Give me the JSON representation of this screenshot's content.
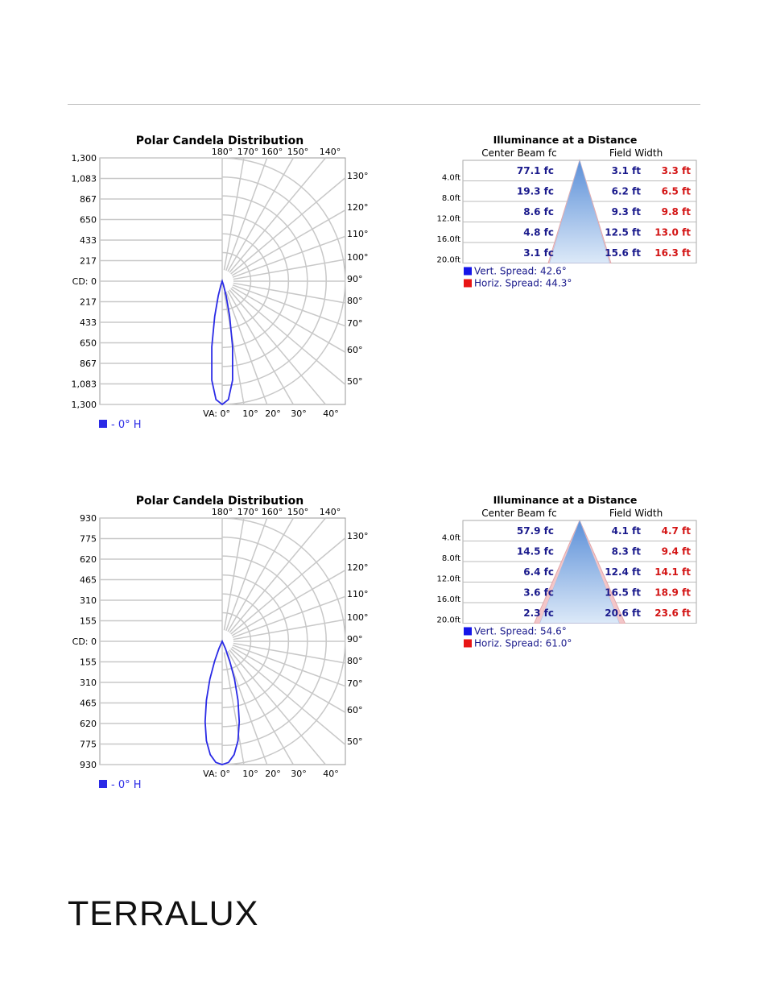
{
  "brand": "TERRALUX",
  "colors": {
    "series_blue": "#2a2ae6",
    "fc_text": "#1a1a8c",
    "width_horiz": "#d31414",
    "grid": "#c8c8c8",
    "cone_top": "#5b8fd8",
    "cone_bottom": "#dce9f8"
  },
  "chart_data": [
    {
      "type": "polar",
      "title": "Polar Candela Distribution",
      "cd_label": "CD: 0",
      "va_label": "VA: 0°",
      "top_angle_labels": [
        "180°",
        "170°",
        "160°",
        "150°",
        "140°"
      ],
      "right_angle_labels": [
        "130°",
        "120°",
        "110°",
        "100°",
        "90°",
        "80°",
        "70°",
        "60°",
        "50°"
      ],
      "bottom_angle_labels": [
        "10°",
        "20°",
        "30°",
        "40°"
      ],
      "cd_max": 1300,
      "y_ticks_upper": [
        "1,300",
        "1,083",
        "867",
        "650",
        "433",
        "217"
      ],
      "y_ticks_lower": [
        "217",
        "433",
        "650",
        "867",
        "1,083",
        "1,300"
      ],
      "legend": "- 0° H",
      "series": [
        {
          "name": "- 0° H",
          "angles": [
            0,
            3,
            6,
            9,
            12,
            15,
            18,
            20
          ],
          "candela": [
            1300,
            1250,
            1050,
            700,
            380,
            160,
            40,
            0
          ]
        }
      ]
    },
    {
      "type": "table",
      "title": "Illuminance at a Distance",
      "col_fc": "Center Beam fc",
      "col_width": "Field Width",
      "rows": [
        {
          "distance": "4.0ft",
          "fc": "77.1 fc",
          "vert": "3.1 ft",
          "horiz": "3.3 ft"
        },
        {
          "distance": "8.0ft",
          "fc": "19.3 fc",
          "vert": "6.2 ft",
          "horiz": "6.5 ft"
        },
        {
          "distance": "12.0ft",
          "fc": "8.6 fc",
          "vert": "9.3 ft",
          "horiz": "9.8 ft"
        },
        {
          "distance": "16.0ft",
          "fc": "4.8 fc",
          "vert": "12.5 ft",
          "horiz": "13.0 ft"
        },
        {
          "distance": "20.0ft",
          "fc": "3.1 fc",
          "vert": "15.6 ft",
          "horiz": "16.3 ft"
        }
      ],
      "vert_spread_label": "Vert.  Spread: 42.6°",
      "horiz_spread_label": "Horiz. Spread: 44.3°",
      "vert_spread": 42.6,
      "horiz_spread": 44.3
    },
    {
      "type": "polar",
      "title": "Polar Candela Distribution",
      "cd_label": "CD: 0",
      "va_label": "VA: 0°",
      "top_angle_labels": [
        "180°",
        "170°",
        "160°",
        "150°",
        "140°"
      ],
      "right_angle_labels": [
        "130°",
        "120°",
        "110°",
        "100°",
        "90°",
        "80°",
        "70°",
        "60°",
        "50°"
      ],
      "bottom_angle_labels": [
        "10°",
        "20°",
        "30°",
        "40°"
      ],
      "cd_max": 930,
      "y_ticks_upper": [
        "930",
        "775",
        "620",
        "465",
        "310",
        "155"
      ],
      "y_ticks_lower": [
        "155",
        "310",
        "465",
        "620",
        "775",
        "930"
      ],
      "legend": "- 0° H",
      "series": [
        {
          "name": "- 0° H",
          "angles": [
            0,
            3,
            6,
            9,
            12,
            15,
            18,
            21,
            24,
            27,
            28
          ],
          "candela": [
            930,
            915,
            860,
            760,
            620,
            460,
            300,
            160,
            60,
            10,
            0
          ]
        }
      ]
    },
    {
      "type": "table",
      "title": "Illuminance at a Distance",
      "col_fc": "Center Beam fc",
      "col_width": "Field Width",
      "rows": [
        {
          "distance": "4.0ft",
          "fc": "57.9 fc",
          "vert": "4.1 ft",
          "horiz": "4.7 ft"
        },
        {
          "distance": "8.0ft",
          "fc": "14.5 fc",
          "vert": "8.3 ft",
          "horiz": "9.4 ft"
        },
        {
          "distance": "12.0ft",
          "fc": "6.4 fc",
          "vert": "12.4 ft",
          "horiz": "14.1 ft"
        },
        {
          "distance": "16.0ft",
          "fc": "3.6 fc",
          "vert": "16.5 ft",
          "horiz": "18.9 ft"
        },
        {
          "distance": "20.0ft",
          "fc": "2.3 fc",
          "vert": "20.6 ft",
          "horiz": "23.6 ft"
        }
      ],
      "vert_spread_label": "Vert.  Spread: 54.6°",
      "horiz_spread_label": "Horiz. Spread: 61.0°",
      "vert_spread": 54.6,
      "horiz_spread": 61.0
    }
  ]
}
